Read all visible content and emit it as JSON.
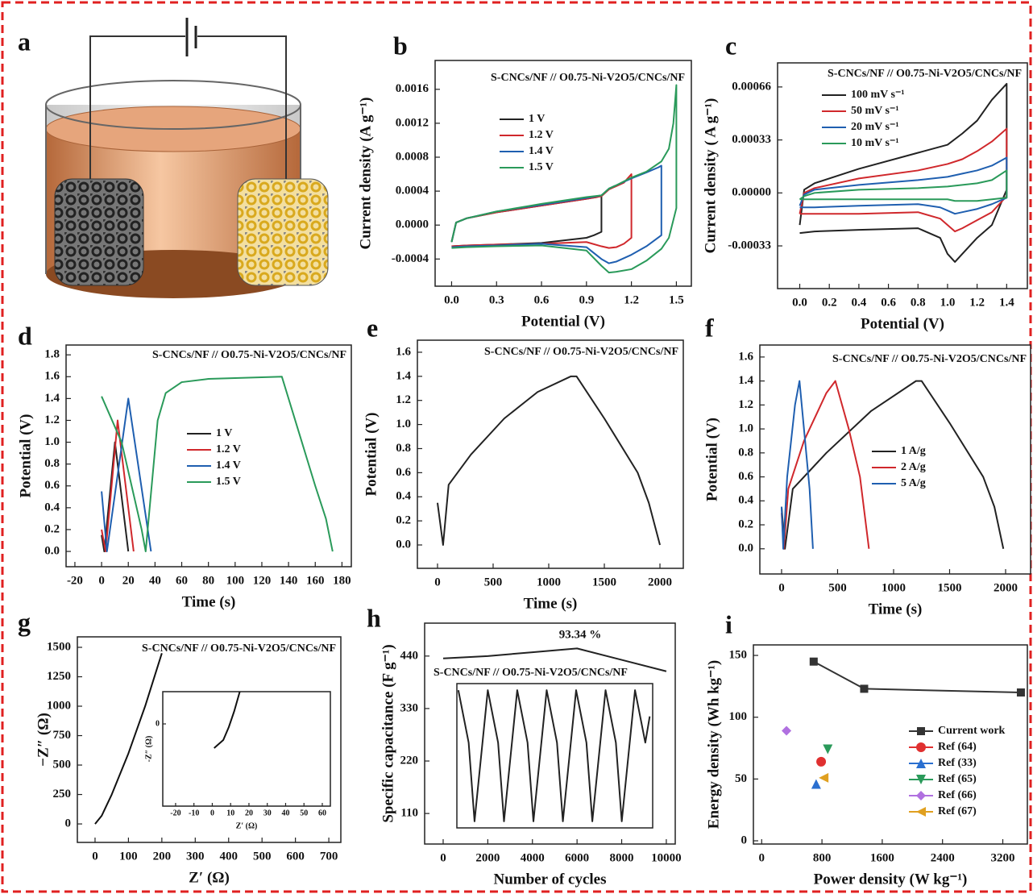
{
  "schematic": {
    "panel": "a"
  },
  "chart_data": [
    {
      "panel": "b",
      "type": "line",
      "title": "S-CNCs/NF // O0.75-Ni-V2O5/CNCs/NF",
      "xlabel": "Potential (V)",
      "ylabel": "Current density (A g⁻¹)",
      "xlim": [
        -0.11,
        1.6
      ],
      "ylim": [
        -0.00072,
        0.00194
      ],
      "xticks": [
        {
          "value": 0,
          "label": "0.0"
        },
        0.3,
        0.6,
        0.9,
        1.2,
        1.5
      ],
      "yticks": [
        -0.0004,
        {
          "value": 0,
          "label": "0.0000"
        },
        0.0004,
        0.0008,
        0.0012,
        0.0016
      ],
      "series": [
        {
          "name": "1 V",
          "color": "#222222",
          "x": [
            0,
            0.03,
            0.1,
            0.3,
            0.6,
            0.9,
            0.97,
            1.0,
            1.0,
            0.95,
            0.9,
            0.6,
            0.3,
            0.1,
            0
          ],
          "values": [
            -0.0002,
            3e-05,
            8e-05,
            0.00015,
            0.00023,
            0.00031,
            0.00033,
            0.00035,
            -8e-05,
            -0.00012,
            -0.00015,
            -0.00021,
            -0.00023,
            -0.00024,
            -0.00025
          ]
        },
        {
          "name": "1.2 V",
          "color": "#d0282c",
          "x": [
            0,
            0.03,
            0.1,
            0.3,
            0.6,
            0.9,
            1.0,
            1.05,
            1.1,
            1.15,
            1.2,
            1.2,
            1.15,
            1.1,
            1.05,
            1.0,
            0.9,
            0.6,
            0.3,
            0.1,
            0
          ],
          "values": [
            -0.0002,
            3e-05,
            8e-05,
            0.00015,
            0.00023,
            0.00031,
            0.00034,
            0.00042,
            0.00046,
            0.0005,
            0.0006,
            -0.00015,
            -0.00022,
            -0.00026,
            -0.00027,
            -0.00025,
            -0.0002,
            -0.00022,
            -0.00023,
            -0.00024,
            -0.00025
          ]
        },
        {
          "name": "1.4 V",
          "color": "#1f5fb0",
          "x": [
            0,
            0.03,
            0.1,
            0.3,
            0.6,
            0.9,
            1.0,
            1.05,
            1.1,
            1.2,
            1.3,
            1.38,
            1.4,
            1.4,
            1.3,
            1.2,
            1.1,
            1.05,
            1.0,
            0.9,
            0.6,
            0.3,
            0.1,
            0
          ],
          "values": [
            -0.0002,
            3e-05,
            8e-05,
            0.00016,
            0.00024,
            0.00032,
            0.00035,
            0.00043,
            0.00047,
            0.00055,
            0.00062,
            0.00068,
            0.0007,
            -0.00012,
            -0.00025,
            -0.00035,
            -0.00043,
            -0.00045,
            -0.0004,
            -0.00026,
            -0.00022,
            -0.00024,
            -0.00025,
            -0.00026
          ]
        },
        {
          "name": "1.5 V",
          "color": "#2a9a5a",
          "x": [
            0,
            0.03,
            0.1,
            0.3,
            0.6,
            0.9,
            1.0,
            1.05,
            1.1,
            1.2,
            1.3,
            1.4,
            1.45,
            1.48,
            1.5,
            1.5,
            1.45,
            1.4,
            1.3,
            1.2,
            1.1,
            1.05,
            1.0,
            0.9,
            0.6,
            0.3,
            0.1,
            0
          ],
          "values": [
            -0.0002,
            3e-05,
            8e-05,
            0.00016,
            0.00025,
            0.00033,
            0.00035,
            0.00043,
            0.00047,
            0.00056,
            0.00063,
            0.00075,
            0.0009,
            0.0012,
            0.00165,
            0.0002,
            -0.00015,
            -0.00028,
            -0.00042,
            -0.00052,
            -0.00055,
            -0.00056,
            -0.00048,
            -0.0003,
            -0.00024,
            -0.00025,
            -0.00026,
            -0.00027
          ]
        }
      ]
    },
    {
      "panel": "c",
      "type": "line",
      "title": "S-CNCs/NF // O0.75-Ni-V2O5/CNCs/NF",
      "xlabel": "Potential (V)",
      "ylabel": "Current density ( A g⁻¹)",
      "xlim": [
        -0.15,
        1.54
      ],
      "ylim": [
        -0.000596,
        0.00081
      ],
      "xticks": [
        {
          "value": 0,
          "label": "0.0"
        },
        0.2,
        0.4,
        0.6,
        0.8,
        {
          "value": 1,
          "label": "1.0"
        },
        1.2,
        1.4
      ],
      "yticks": [
        -0.00033,
        {
          "value": 0,
          "label": "0.00000"
        },
        0.00033,
        0.00066
      ],
      "x": [
        0,
        0.03,
        0.1,
        0.4,
        0.8,
        1.0,
        1.1,
        1.2,
        1.3,
        1.4,
        1.4,
        1.3,
        1.2,
        1.1,
        1.05,
        1.0,
        0.95,
        0.8,
        0.4,
        0.1,
        0
      ],
      "series": [
        {
          "name": "100 mV s⁻¹",
          "color": "#222222",
          "values": [
            -0.0002,
            2e-05,
            6e-05,
            0.00015,
            0.00025,
            0.0003,
            0.00037,
            0.00045,
            0.00058,
            0.00068,
            2e-05,
            -0.0002,
            -0.00028,
            -0.00038,
            -0.00043,
            -0.00038,
            -0.00028,
            -0.00022,
            -0.00023,
            -0.00024,
            -0.00025
          ]
        },
        {
          "name": "50 mV s⁻¹",
          "color": "#d0282c",
          "values": [
            -0.00013,
            0,
            3e-05,
            9e-05,
            0.00014,
            0.00018,
            0.00021,
            0.00026,
            0.00032,
            0.0004,
            -2e-05,
            -0.00012,
            -0.00017,
            -0.00022,
            -0.00024,
            -0.0002,
            -0.00016,
            -0.00012,
            -0.00013,
            -0.00013,
            -0.00013
          ]
        },
        {
          "name": "20 mV s⁻¹",
          "color": "#1f5fb0",
          "values": [
            -8e-05,
            -1e-05,
            2e-05,
            5e-05,
            8e-05,
            0.0001,
            0.00012,
            0.00014,
            0.00017,
            0.00022,
            -3e-05,
            -7e-05,
            -0.0001,
            -0.00012,
            -0.00013,
            -0.00011,
            -9e-05,
            -7e-05,
            -8e-05,
            -9e-05,
            -9e-05
          ]
        },
        {
          "name": "10 mV s⁻¹",
          "color": "#2a9a5a",
          "values": [
            -4e-05,
            -2e-05,
            0,
            2e-05,
            3e-05,
            4e-05,
            5e-05,
            6e-05,
            8e-05,
            0.00014,
            -3e-05,
            -4e-05,
            -5e-05,
            -5e-05,
            -5e-05,
            -4e-05,
            -4e-05,
            -4e-05,
            -4e-05,
            -4e-05,
            -4e-05
          ]
        }
      ]
    },
    {
      "panel": "d",
      "type": "line",
      "title": "S-CNCs/NF // O0.75-Ni-V2O5/CNCs/NF",
      "xlabel": "Time (s)",
      "ylabel": "Potential (V)",
      "xlim": [
        -26.6,
        187
      ],
      "ylim": [
        -0.14,
        1.89
      ],
      "xticks": [
        -20,
        0,
        20,
        40,
        60,
        80,
        100,
        120,
        140,
        160,
        180
      ],
      "yticks": [
        {
          "value": 0,
          "label": "0.0"
        },
        0.2,
        0.4,
        0.6,
        0.8,
        {
          "value": 1,
          "label": "1.0"
        },
        1.2,
        1.4,
        1.6,
        1.8
      ],
      "series": [
        {
          "name": "1 V",
          "color": "#222222",
          "x": [
            0,
            2,
            10,
            20
          ],
          "values": [
            0.15,
            0,
            1.0,
            0
          ]
        },
        {
          "name": "1.2 V",
          "color": "#d0282c",
          "x": [
            0,
            3,
            12,
            24
          ],
          "values": [
            0.2,
            0,
            1.2,
            0
          ]
        },
        {
          "name": "1.4 V",
          "color": "#1f5fb0",
          "x": [
            0,
            4,
            20,
            37
          ],
          "values": [
            0.55,
            0,
            1.4,
            0
          ]
        },
        {
          "name": "1.5 V",
          "color": "#2a9a5a",
          "x": [
            0,
            15,
            30,
            33,
            42,
            48,
            60,
            80,
            135,
            140,
            150,
            160,
            168,
            173
          ],
          "values": [
            1.42,
            1.0,
            0.2,
            0,
            1.2,
            1.45,
            1.55,
            1.58,
            1.6,
            1.4,
            1.0,
            0.6,
            0.3,
            0
          ]
        }
      ]
    },
    {
      "panel": "e",
      "type": "line",
      "title": "S-CNCs/NF // O0.75-Ni-V2O5/CNCs/NF",
      "xlabel": "Time (s)",
      "ylabel": "Potential (V)",
      "xlim": [
        -181,
        2210
      ],
      "ylim": [
        -0.194,
        1.7
      ],
      "xticks": [
        0,
        500,
        1000,
        1500,
        2000
      ],
      "yticks": [
        {
          "value": 0,
          "label": "0.0"
        },
        0.2,
        0.4,
        0.6,
        0.8,
        {
          "value": 1,
          "label": "1.0"
        },
        1.2,
        1.4,
        1.6
      ],
      "series": [
        {
          "color": "#222222",
          "x": [
            0,
            50,
            100,
            300,
            600,
            900,
            1200,
            1250,
            1500,
            1800,
            1900,
            2000
          ],
          "values": [
            0.35,
            0,
            0.5,
            0.75,
            1.05,
            1.27,
            1.4,
            1.4,
            1.05,
            0.6,
            0.35,
            0
          ]
        }
      ]
    },
    {
      "panel": "f",
      "type": "line",
      "title": "S-CNCs/NF // O0.75-Ni-V2O5/CNCs/NF",
      "xlabel": "Time (s)",
      "ylabel": "Potential (V)",
      "xlim": [
        -194,
        2223
      ],
      "ylim": [
        -0.21,
        1.7
      ],
      "xticks": [
        0,
        500,
        1000,
        1500,
        2000
      ],
      "yticks": [
        {
          "value": 0,
          "label": "0.0"
        },
        0.2,
        0.4,
        0.6,
        0.8,
        {
          "value": 1,
          "label": "1.0"
        },
        1.2,
        1.4,
        1.6
      ],
      "series": [
        {
          "name": "1 A/g",
          "color": "#222222",
          "x": [
            0,
            30,
            100,
            400,
            800,
            1200,
            1250,
            1500,
            1800,
            1900,
            1980
          ],
          "values": [
            0.35,
            0,
            0.5,
            0.8,
            1.15,
            1.4,
            1.4,
            1.05,
            0.6,
            0.35,
            0
          ]
        },
        {
          "name": "2 A/g",
          "color": "#d0282c",
          "x": [
            0,
            20,
            60,
            200,
            400,
            480,
            600,
            700,
            780
          ],
          "values": [
            0.3,
            0,
            0.5,
            0.9,
            1.3,
            1.4,
            1.0,
            0.6,
            0
          ]
        },
        {
          "name": "5 A/g",
          "color": "#1f5fb0",
          "x": [
            0,
            15,
            50,
            120,
            160,
            200,
            250,
            280
          ],
          "values": [
            0.35,
            0,
            0.6,
            1.2,
            1.4,
            1.0,
            0.5,
            0
          ]
        }
      ]
    },
    {
      "panel": "g",
      "type": "line",
      "title": "S-CNCs/NF // O0.75-Ni-V2O5/CNCs/NF",
      "xlabel": "Z′ (Ω)",
      "ylabel": "−Z″ (Ω)",
      "xlim": [
        -53,
        736
      ],
      "ylim": [
        -157,
        1589
      ],
      "xticks": [
        0,
        100,
        200,
        300,
        400,
        500,
        600,
        700
      ],
      "yticks": [
        0,
        250,
        500,
        750,
        1000,
        1250,
        1500
      ],
      "series": [
        {
          "color": "#111111",
          "x": [
            0,
            20,
            50,
            100,
            150,
            200
          ],
          "values": [
            0,
            70,
            250,
            600,
            1000,
            1450
          ]
        }
      ]
    },
    {
      "type": "line",
      "xlabel": "Z′ (Ω)",
      "ylabel": "-Z″ (Ω)",
      "xlim": [
        -27,
        64.4
      ],
      "ylim": [
        -25.5,
        10
      ],
      "xticks": [
        -20,
        -10,
        0,
        10,
        20,
        30,
        40,
        50,
        60
      ],
      "yticks": [
        0
      ],
      "series": [
        {
          "color": "#111111",
          "x": [
            1,
            6,
            9,
            12,
            15
          ],
          "values": [
            -7.5,
            -5,
            -1,
            4,
            10
          ]
        }
      ]
    },
    {
      "panel": "h",
      "type": "line",
      "title": "S-CNCs/NF // O0.75-Ni-V2O5/CNCs/NF",
      "annotation": "93.34 %",
      "xlabel": "Number of cycles",
      "ylabel": "Specific capacitance (F g⁻¹)",
      "xlim": [
        -830,
        10400
      ],
      "ylim": [
        46,
        509
      ],
      "xticks": [
        0,
        2000,
        4000,
        6000,
        8000,
        10000
      ],
      "yticks": [
        110,
        220,
        330,
        440
      ],
      "series": [
        {
          "color": "#222222",
          "x": [
            0,
            2000,
            4000,
            6000,
            8000,
            10000
          ],
          "values": [
            435,
            440,
            448,
            456,
            432,
            408
          ]
        }
      ]
    },
    {
      "type": "line",
      "xlim": [
        -0.05,
        6.6
      ],
      "ylim": [
        -0.05,
        1.05
      ],
      "series": [
        {
          "color": "#222222",
          "x": [
            0,
            0.35,
            0.55,
            1,
            1.35,
            1.55,
            2,
            2.35,
            2.55,
            3,
            3.35,
            3.55,
            4,
            4.35,
            4.55,
            5,
            5.35,
            5.55,
            6,
            6.35,
            6.5
          ],
          "values": [
            1,
            0.6,
            0,
            1,
            0.6,
            0,
            1,
            0.6,
            0,
            1,
            0.6,
            0,
            1,
            0.6,
            0,
            1,
            0.6,
            0,
            1,
            0.6,
            0.8
          ]
        }
      ]
    },
    {
      "panel": "i",
      "type": "scatter",
      "xlabel": "Power density  (W kg⁻¹)",
      "ylabel": "Energy density (Wh kg⁻¹)",
      "xlim": [
        -110,
        3526
      ],
      "ylim": [
        -2.6,
        158.5
      ],
      "xticks": [
        0,
        800,
        1600,
        2400,
        3200
      ],
      "yticks": [
        0,
        50,
        100,
        150
      ],
      "series": [
        {
          "name": "Current work",
          "color": "#333333",
          "marker": "square",
          "line": true,
          "x": [
            690,
            1360,
            3440
          ],
          "values": [
            145,
            123,
            120
          ]
        },
        {
          "name": "Ref (64)",
          "color": "#e03030",
          "marker": "circle",
          "x": [
            789
          ],
          "values": [
            64
          ]
        },
        {
          "name": "Ref (33)",
          "color": "#2a6fd0",
          "marker": "triangle-up",
          "x": [
            723
          ],
          "values": [
            46
          ]
        },
        {
          "name": "Ref (65)",
          "color": "#2a9a5a",
          "marker": "triangle-down",
          "x": [
            877
          ],
          "values": [
            74
          ]
        },
        {
          "name": "Ref (66)",
          "color": "#b070e0",
          "marker": "diamond",
          "x": [
            329
          ],
          "values": [
            89
          ]
        },
        {
          "name": "Ref (67)",
          "color": "#e0a020",
          "marker": "triangle-left",
          "x": [
            822
          ],
          "values": [
            51
          ]
        }
      ]
    }
  ]
}
